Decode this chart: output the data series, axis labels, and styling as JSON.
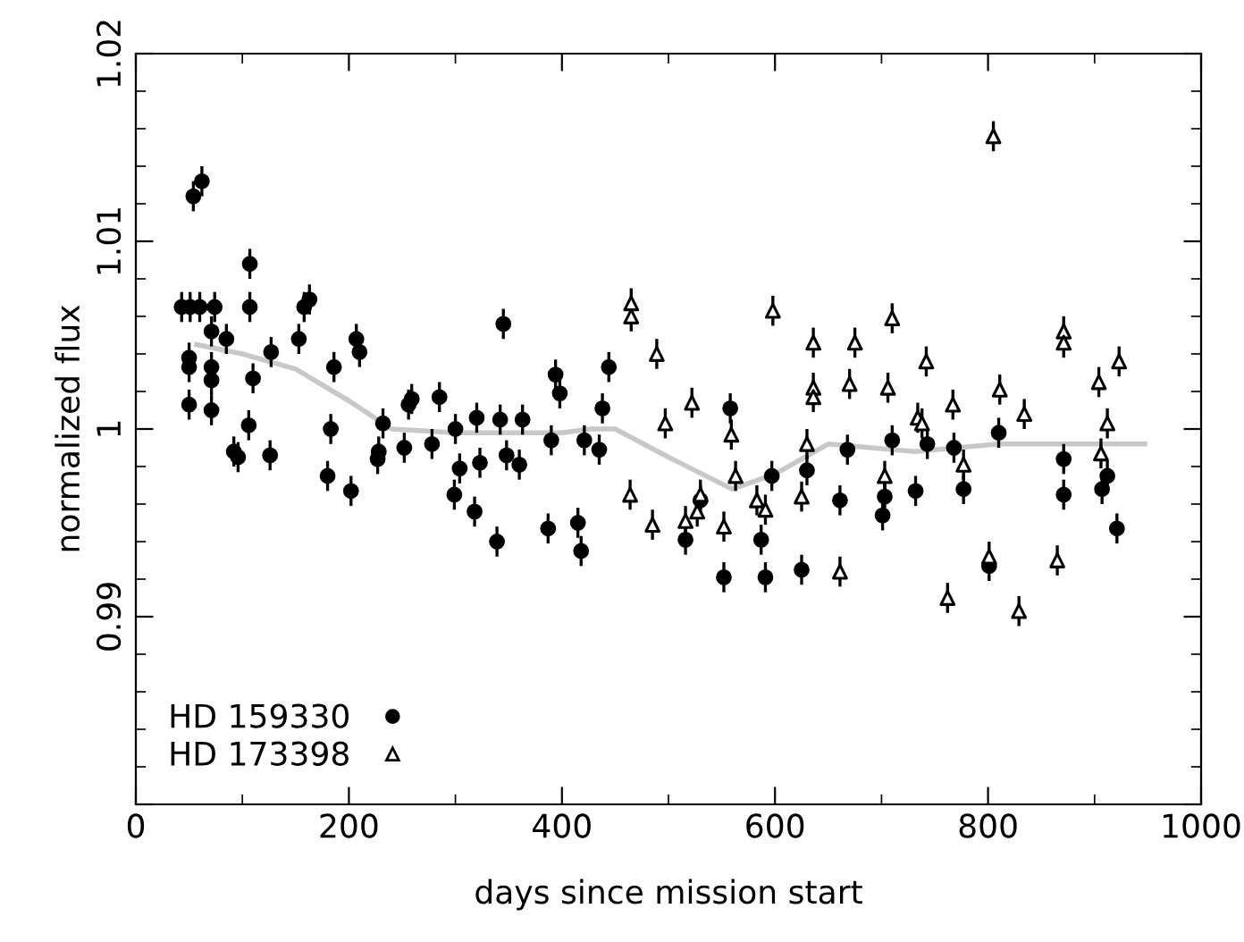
{
  "chart_data": {
    "type": "scatter",
    "xlabel": "days since mission start",
    "ylabel": "normalized flux",
    "xlim": [
      0,
      1000
    ],
    "xticks": [
      0,
      200,
      400,
      600,
      800,
      1000
    ],
    "ylim": [
      0.98,
      1.02
    ],
    "yticks": [
      {
        "value": 0.98,
        "label": null
      },
      0.99,
      1,
      1.01,
      1.02
    ],
    "legend": "bottom left",
    "grid": false,
    "series": [
      {
        "name": "HD 159330",
        "marker": "circle",
        "color": "#000000",
        "x": [
          54,
          62,
          43,
          51,
          60,
          74,
          107,
          107,
          71,
          85,
          50,
          50,
          71,
          71,
          50,
          71,
          110,
          106,
          92,
          96,
          127,
          126,
          153,
          158,
          163,
          186,
          183,
          180,
          202,
          207,
          210,
          232,
          228,
          227,
          252,
          256,
          259,
          278,
          285,
          300,
          304,
          299,
          318,
          320,
          323,
          339,
          345,
          342,
          348,
          360,
          363,
          387,
          390,
          394,
          398,
          415,
          418,
          421,
          435,
          438,
          444,
          516,
          530,
          552,
          558,
          587,
          591,
          597,
          625,
          630,
          661,
          668,
          703,
          701,
          710,
          732,
          743,
          768,
          777,
          801,
          810,
          871,
          871,
          907,
          912,
          921
        ],
        "values": [
          1.0124,
          1.0132,
          1.0065,
          1.0065,
          1.0065,
          1.0065,
          1.0088,
          1.0065,
          1.0052,
          1.0048,
          1.0038,
          1.0033,
          1.0033,
          1.0026,
          1.0013,
          1.001,
          1.0027,
          1.0002,
          0.9988,
          0.9985,
          1.0041,
          0.9986,
          1.0048,
          1.0065,
          1.0069,
          1.0033,
          1.0,
          0.9975,
          0.9967,
          1.0048,
          1.0041,
          1.0003,
          0.9988,
          0.9984,
          0.999,
          1.0013,
          1.0016,
          0.9992,
          1.0017,
          1.0,
          0.9979,
          0.9965,
          0.9956,
          1.0006,
          0.9982,
          0.994,
          1.0056,
          1.0005,
          0.9986,
          0.9981,
          1.0005,
          0.9947,
          0.9994,
          1.0029,
          1.0019,
          0.995,
          0.9935,
          0.9994,
          0.9989,
          1.0011,
          1.0033,
          0.9941,
          0.9962,
          0.9921,
          1.0011,
          0.9941,
          0.9921,
          0.9975,
          0.9925,
          0.9978,
          0.9962,
          0.9989,
          0.9964,
          0.9954,
          0.9994,
          0.9967,
          0.9992,
          0.999,
          0.9968,
          0.9927,
          0.9998,
          0.9984,
          0.9965,
          0.9968,
          0.9975,
          0.9947
        ],
        "errors": [
          0.0008,
          0.0008,
          0.0008,
          0.0008,
          0.0008,
          0.0008,
          0.0008,
          0.0008,
          0.0008,
          0.0008,
          0.0008,
          0.0008,
          0.0008,
          0.0008,
          0.0008,
          0.0008,
          0.0008,
          0.0008,
          0.0008,
          0.0008,
          0.0008,
          0.0008,
          0.0008,
          0.0008,
          0.0008,
          0.0008,
          0.0008,
          0.0008,
          0.0008,
          0.0008,
          0.0008,
          0.0008,
          0.0008,
          0.0008,
          0.0008,
          0.0008,
          0.0008,
          0.0008,
          0.0008,
          0.0008,
          0.0008,
          0.0008,
          0.0008,
          0.0008,
          0.0008,
          0.0008,
          0.0008,
          0.0008,
          0.0008,
          0.0008,
          0.0008,
          0.0008,
          0.0008,
          0.0008,
          0.0008,
          0.0008,
          0.0008,
          0.0008,
          0.0008,
          0.0008,
          0.0008,
          0.0008,
          0.0008,
          0.0008,
          0.0008,
          0.0008,
          0.0008,
          0.0008,
          0.0008,
          0.0008,
          0.0008,
          0.0008,
          0.0008,
          0.0008,
          0.0008,
          0.0008,
          0.0008,
          0.0008,
          0.0008,
          0.0008,
          0.0008,
          0.0008,
          0.0008,
          0.0008,
          0.0008,
          0.0008
        ]
      },
      {
        "name": "HD 173398",
        "marker": "triangle",
        "color": "#000000",
        "x": [
          465,
          465,
          464,
          489,
          497,
          522,
          485,
          516,
          527,
          530,
          552,
          559,
          563,
          583,
          591,
          598,
          625,
          630,
          636,
          636,
          636,
          661,
          670,
          675,
          703,
          706,
          710,
          734,
          738,
          742,
          762,
          767,
          777,
          801,
          805,
          811,
          829,
          834,
          865,
          871,
          871,
          904,
          912,
          906,
          923
        ],
        "values": [
          1.0067,
          1.006,
          0.9965,
          1.004,
          1.0003,
          1.0014,
          0.9949,
          0.9951,
          0.9956,
          0.9965,
          0.9948,
          0.9997,
          0.9975,
          0.9962,
          0.9957,
          1.0063,
          0.9964,
          0.9992,
          1.0046,
          1.0022,
          1.0017,
          0.9924,
          1.0024,
          1.0046,
          0.9975,
          1.0022,
          1.0059,
          1.0006,
          1.0003,
          1.0036,
          0.991,
          1.0013,
          0.9981,
          0.9932,
          1.0156,
          1.0021,
          0.9903,
          1.0008,
          0.993,
          1.0052,
          1.0046,
          1.0025,
          1.0003,
          0.9987,
          1.0036
        ],
        "errors": [
          0.0008,
          0.0008,
          0.0008,
          0.0008,
          0.0008,
          0.0008,
          0.0008,
          0.0008,
          0.0008,
          0.0008,
          0.0008,
          0.0008,
          0.0008,
          0.0008,
          0.0008,
          0.0008,
          0.0008,
          0.0008,
          0.0008,
          0.0008,
          0.0008,
          0.0008,
          0.0008,
          0.0008,
          0.0008,
          0.0008,
          0.0008,
          0.0008,
          0.0008,
          0.0008,
          0.0008,
          0.0008,
          0.0008,
          0.0008,
          0.0008,
          0.0008,
          0.0008,
          0.0008,
          0.0008,
          0.0008,
          0.0008,
          0.0008,
          0.0008,
          0.0008,
          0.0008
        ]
      },
      {
        "type": "line",
        "color": "#c8c8c8",
        "line_style": "solid",
        "x": [
          57,
          100,
          150,
          200,
          240,
          300,
          400,
          427,
          450,
          500,
          560,
          600,
          650,
          731,
          810,
          947
        ],
        "values": [
          1.0045,
          1.004,
          1.0032,
          1.0015,
          1.0,
          0.9998,
          0.9998,
          1.0,
          1.0,
          0.9985,
          0.9968,
          0.9976,
          0.9992,
          0.9988,
          0.9992,
          0.9992
        ]
      }
    ]
  }
}
